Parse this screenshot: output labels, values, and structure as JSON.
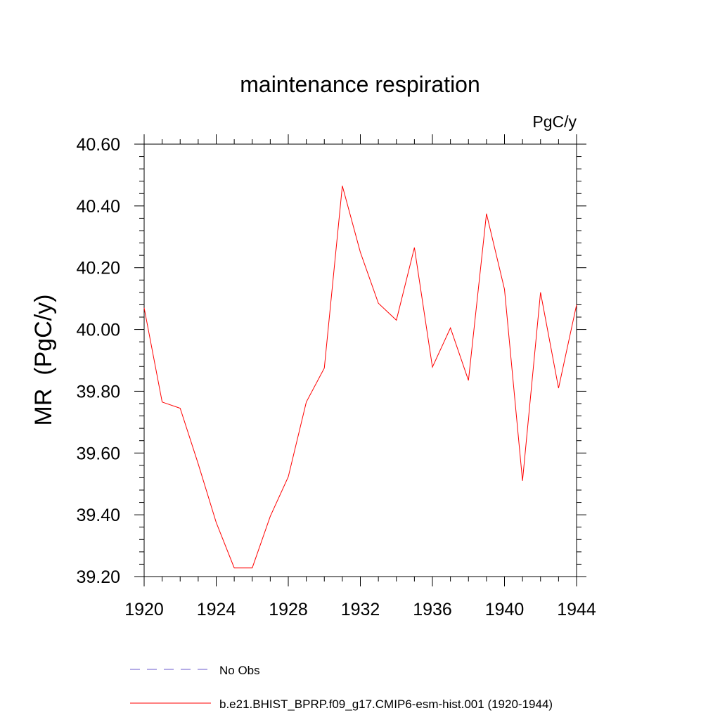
{
  "chart_data": {
    "type": "line",
    "title": "maintenance respiration",
    "units": "PgC/y",
    "ylabel": "MR  (PgC/y)",
    "xlabel": "",
    "xlim": [
      1920,
      1944
    ],
    "ylim": [
      39.2,
      40.6
    ],
    "xticks": [
      1920,
      1924,
      1928,
      1932,
      1936,
      1940,
      1944
    ],
    "xtick_labels": [
      "1920",
      "1924",
      "1928",
      "1932",
      "1936",
      "1940",
      "1944"
    ],
    "yticks": [
      39.2,
      39.4,
      39.6,
      39.8,
      40.0,
      40.2,
      40.4,
      40.6
    ],
    "ytick_labels": [
      "39.20",
      "39.40",
      "39.60",
      "39.80",
      "40.00",
      "40.20",
      "40.40",
      "40.60"
    ],
    "grid": false,
    "series": [
      {
        "name": "b.e21.BHIST_BPRP.f09_g17.CMIP6-esm-hist.001 (1920-1944)",
        "color": "#ff0000",
        "x": [
          1920,
          1921,
          1922,
          1923,
          1924,
          1925,
          1926,
          1927,
          1928,
          1929,
          1930,
          1931,
          1932,
          1933,
          1934,
          1935,
          1936,
          1937,
          1938,
          1939,
          1940,
          1941,
          1942,
          1943,
          1944
        ],
        "values": [
          40.07,
          39.765,
          39.745,
          39.565,
          39.375,
          39.228,
          39.228,
          39.395,
          39.523,
          39.765,
          39.875,
          40.465,
          40.25,
          40.085,
          40.03,
          40.265,
          39.878,
          40.005,
          39.835,
          40.375,
          40.13,
          39.51,
          40.12,
          39.81,
          40.08
        ]
      }
    ],
    "legend": {
      "placement": "bottom",
      "entries": [
        {
          "label": "No Obs",
          "color": "#6a5acd",
          "style": "dashed"
        },
        {
          "label": "b.e21.BHIST_BPRP.f09_g17.CMIP6-esm-hist.001 (1920-1944)",
          "color": "#ff0000",
          "style": "solid"
        }
      ]
    }
  }
}
